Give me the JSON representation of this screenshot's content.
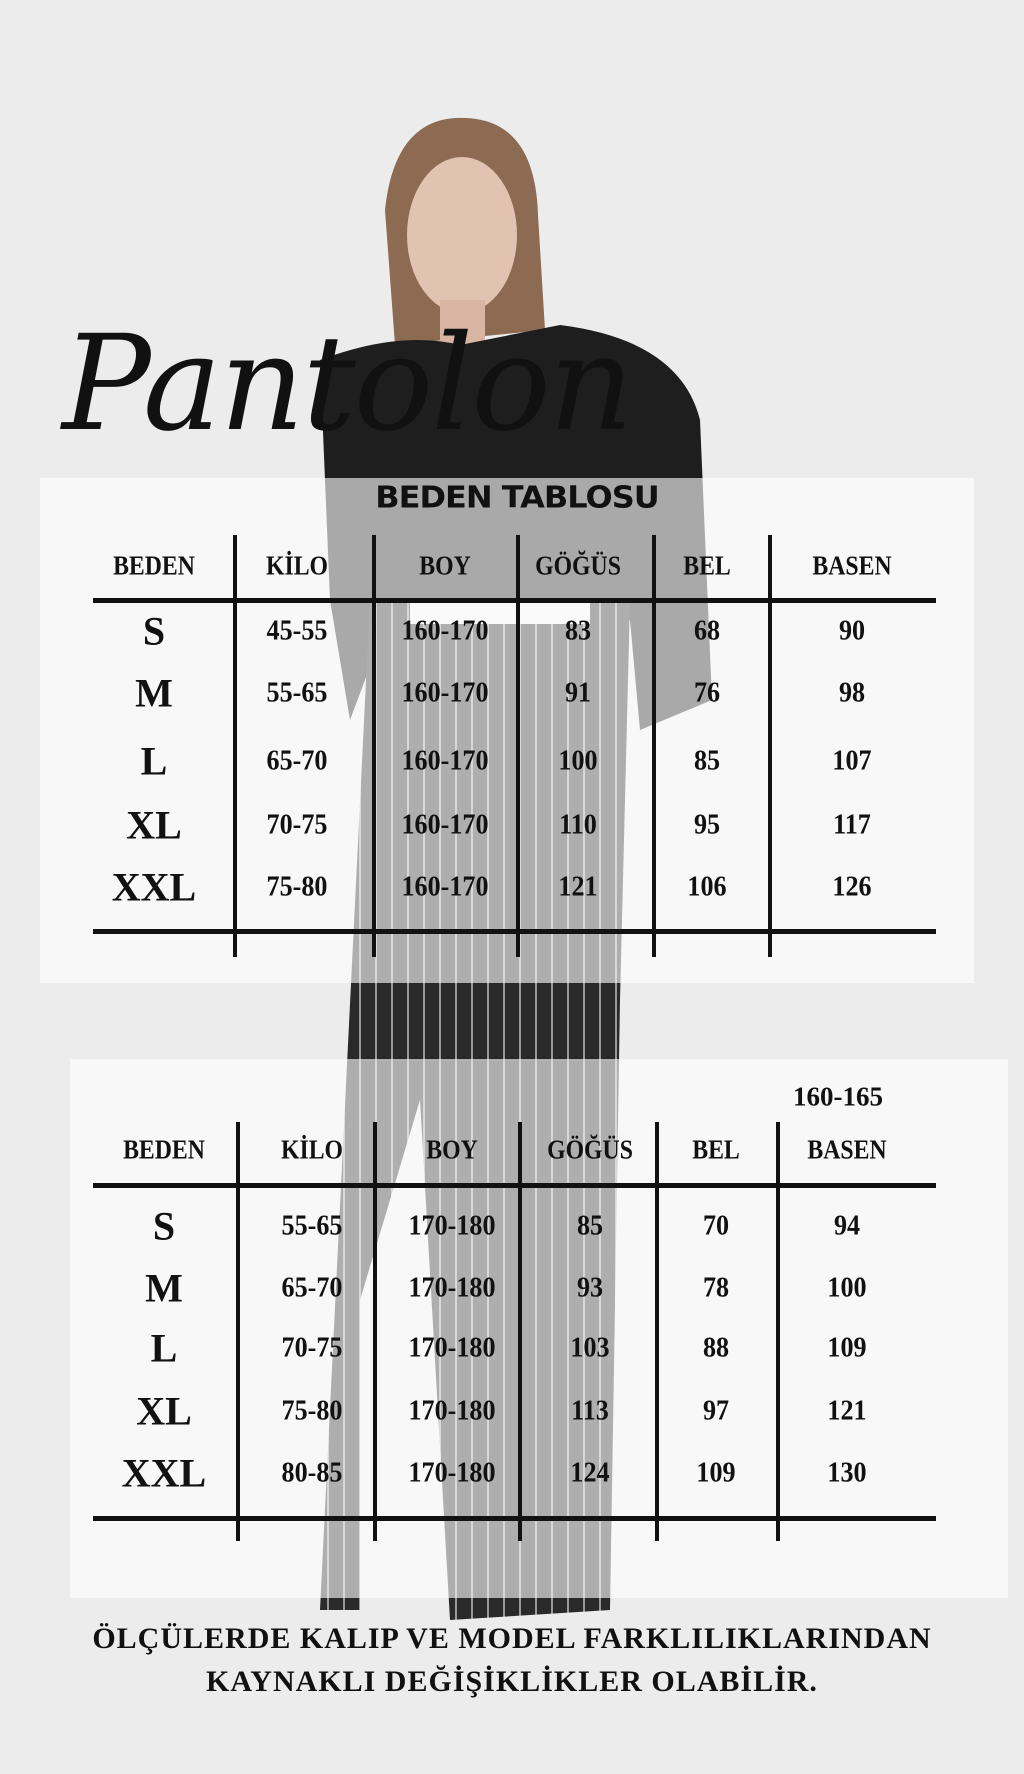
{
  "title_script": "Pantolon",
  "subtitle": "BEDEN TABLOSU",
  "headers": [
    "BEDEN",
    "KİLO",
    "BOY",
    "GÖĞÜS",
    "BEL",
    "BASEN"
  ],
  "table1": {
    "rows": [
      [
        "S",
        "45-55",
        "160-170",
        "83",
        "68",
        "90"
      ],
      [
        "M",
        "55-65",
        "160-170",
        "91",
        "76",
        "98"
      ],
      [
        "L",
        "65-70",
        "160-170",
        "100",
        "85",
        "107"
      ],
      [
        "XL",
        "70-75",
        "160-170",
        "110",
        "95",
        "117"
      ],
      [
        "XXL",
        "75-80",
        "160-170",
        "121",
        "106",
        "126"
      ]
    ]
  },
  "table2": {
    "note_above_basen": "160-165",
    "rows": [
      [
        "S",
        "55-65",
        "170-180",
        "85",
        "70",
        "94"
      ],
      [
        "M",
        "65-70",
        "170-180",
        "93",
        "78",
        "100"
      ],
      [
        "L",
        "70-75",
        "170-180",
        "103",
        "88",
        "109"
      ],
      [
        "XL",
        "75-80",
        "170-180",
        "113",
        "97",
        "121"
      ],
      [
        "XXL",
        "80-85",
        "170-180",
        "124",
        "109",
        "130"
      ]
    ]
  },
  "footer": {
    "line1": "ÖLÇÜLERDE KALIP VE MODEL FARKLILIKLARINDAN",
    "line2": "KAYNAKLI DEĞİŞİKLİKLER OLABİLİR."
  },
  "colors": {
    "background": "#ececec",
    "text": "#111111"
  }
}
